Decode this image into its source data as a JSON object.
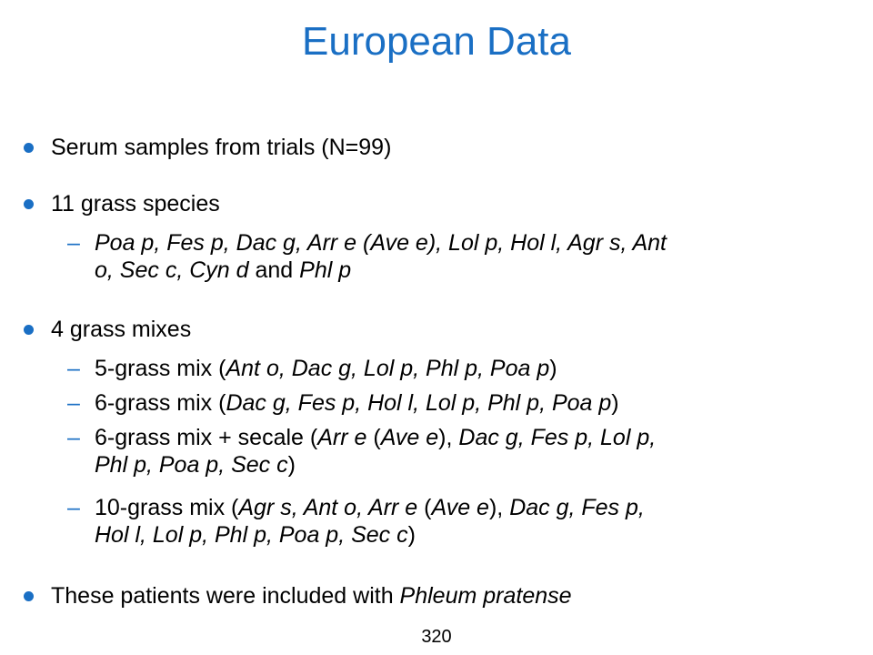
{
  "slide": {
    "title": "European Data",
    "page_number": "320",
    "accent_color": "#1a6fc4",
    "bullet_icon": "filled-circle-bullet",
    "sub_bullet_icon": "en-dash-bullet"
  },
  "bullets": [
    {
      "segments": [
        {
          "text": "Serum samples from trials (N=99)",
          "italic": false
        }
      ],
      "sub": []
    },
    {
      "segments": [
        {
          "text": "11 grass species",
          "italic": false
        }
      ],
      "sub": [
        {
          "lines": [
            [
              {
                "text": "Poa p, Fes p, Dac g, Arr e (Ave e), Lol p, Hol l, Agr s, Ant",
                "italic": true
              }
            ],
            [
              {
                "text": "o, Sec c, Cyn d",
                "italic": true
              },
              {
                "text": " and ",
                "italic": false
              },
              {
                "text": "Phl p",
                "italic": true
              }
            ]
          ]
        }
      ]
    },
    {
      "segments": [
        {
          "text": "4 grass mixes",
          "italic": false
        }
      ],
      "sub": [
        {
          "lines": [
            [
              {
                "text": "5-grass mix (",
                "italic": false
              },
              {
                "text": "Ant o, Dac g, Lol p, Phl p, Poa p",
                "italic": true
              },
              {
                "text": ")",
                "italic": false
              }
            ]
          ]
        },
        {
          "lines": [
            [
              {
                "text": "6-grass mix (",
                "italic": false
              },
              {
                "text": "Dac g, Fes p, Hol l, Lol p, Phl p, Poa p",
                "italic": true
              },
              {
                "text": ")",
                "italic": false
              }
            ]
          ]
        },
        {
          "lines": [
            [
              {
                "text": "6-grass mix + secale (",
                "italic": false
              },
              {
                "text": "Arr e",
                "italic": true
              },
              {
                "text": " (",
                "italic": false
              },
              {
                "text": "Ave e",
                "italic": true
              },
              {
                "text": "), ",
                "italic": false
              },
              {
                "text": "Dac g, Fes p, Lol p,",
                "italic": true
              }
            ],
            [
              {
                "text": "Phl p, Poa p, Sec c",
                "italic": true
              },
              {
                "text": ")",
                "italic": false
              }
            ]
          ]
        },
        {
          "lines": [
            [
              {
                "text": "10-grass mix (",
                "italic": false
              },
              {
                "text": "Agr s, Ant o, Arr e",
                "italic": true
              },
              {
                "text": " (",
                "italic": false
              },
              {
                "text": "Ave e",
                "italic": true
              },
              {
                "text": "), ",
                "italic": false
              },
              {
                "text": "Dac g, Fes p,",
                "italic": true
              }
            ],
            [
              {
                "text": "Hol l, Lol p, Phl p, Poa p, Sec c",
                "italic": true
              },
              {
                "text": ")",
                "italic": false
              }
            ]
          ]
        }
      ]
    },
    {
      "segments": [
        {
          "text": "These patients were included with ",
          "italic": false
        },
        {
          "text": "Phleum pratense",
          "italic": true
        }
      ],
      "sub": []
    }
  ]
}
